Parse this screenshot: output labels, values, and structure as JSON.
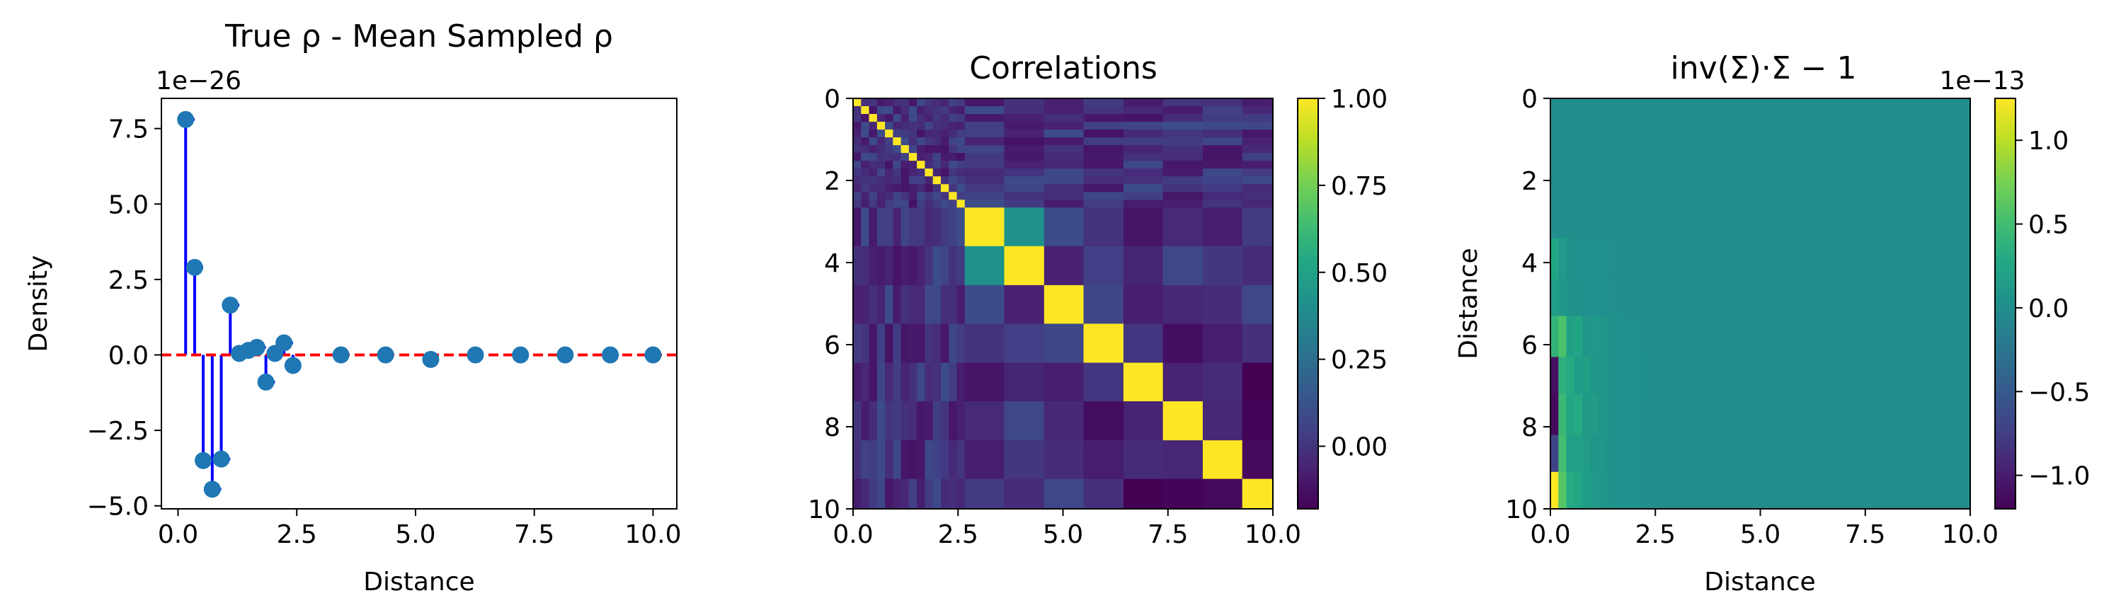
{
  "chart_data": [
    {
      "type": "stem",
      "title": "True ρ - Mean Sampled ρ",
      "xlabel": "Distance",
      "ylabel": "Density",
      "offset_label": "1e−26",
      "xlim": [
        -0.35,
        10.5
      ],
      "ylim": [
        -5.1,
        8.5
      ],
      "x_ticks": [
        0.0,
        2.5,
        5.0,
        7.5,
        10.0
      ],
      "x_tick_labels": [
        "0.0",
        "2.5",
        "5.0",
        "7.5",
        "10.0"
      ],
      "y_ticks": [
        -5.0,
        -2.5,
        0.0,
        2.5,
        5.0,
        7.5
      ],
      "y_tick_labels": [
        "−5.0",
        "−2.5",
        "0.0",
        "2.5",
        "5.0",
        "7.5"
      ],
      "baseline": 0,
      "x": [
        0.16,
        0.35,
        0.53,
        0.72,
        0.91,
        1.1,
        1.29,
        1.48,
        1.66,
        1.85,
        2.04,
        2.23,
        2.42,
        3.43,
        4.37,
        5.32,
        6.26,
        7.21,
        8.15,
        9.1,
        10.0
      ],
      "values": [
        7.8,
        2.9,
        -3.5,
        -4.45,
        -3.45,
        1.65,
        0.05,
        0.15,
        0.25,
        -0.9,
        0.05,
        0.4,
        -0.35,
        0.0,
        0.0,
        -0.15,
        0.0,
        0.0,
        0.0,
        0.0,
        0.0
      ],
      "colors": {
        "markers": "#1f77b4",
        "stems": "#0000ff",
        "baseline": "#ff0000"
      }
    },
    {
      "type": "heatmap",
      "title": "Correlations",
      "xlabel": "",
      "ylabel": "",
      "colormap": "viridis",
      "clim": [
        -0.18,
        1.0
      ],
      "x_tick_labels": [
        "0.0",
        "2.5",
        "5.0",
        "7.5",
        "10.0"
      ],
      "y_tick_labels": [
        "0",
        "2",
        "4",
        "6",
        "8",
        "10"
      ],
      "colorbar_ticks": [
        0.0,
        0.25,
        0.5,
        0.75,
        1.0
      ],
      "colorbar_tick_labels": [
        "0.00",
        "0.25",
        "0.50",
        "0.75",
        "1.00"
      ],
      "bins": [
        0.0,
        0.19,
        0.38,
        0.57,
        0.76,
        0.95,
        1.14,
        1.33,
        1.52,
        1.71,
        1.9,
        2.09,
        2.28,
        2.47,
        2.66,
        3.6,
        4.55,
        5.49,
        6.44,
        7.38,
        8.33,
        9.27,
        10.0
      ]
    },
    {
      "type": "heatmap",
      "title": "inv(Σ)·Σ − 1",
      "xlabel": "Distance",
      "ylabel": "Distance",
      "colormap": "viridis",
      "clim": [
        -1.2,
        1.25
      ],
      "offset_label": "1e−13",
      "x_tick_labels": [
        "0.0",
        "2.5",
        "5.0",
        "7.5",
        "10.0"
      ],
      "y_tick_labels": [
        "0",
        "2",
        "4",
        "6",
        "8",
        "10"
      ],
      "colorbar_ticks": [
        -1.0,
        -0.5,
        0.0,
        0.5,
        1.0
      ],
      "colorbar_tick_labels": [
        "−1.0",
        "−0.5",
        "0.0",
        "0.5",
        "1.0"
      ]
    }
  ]
}
